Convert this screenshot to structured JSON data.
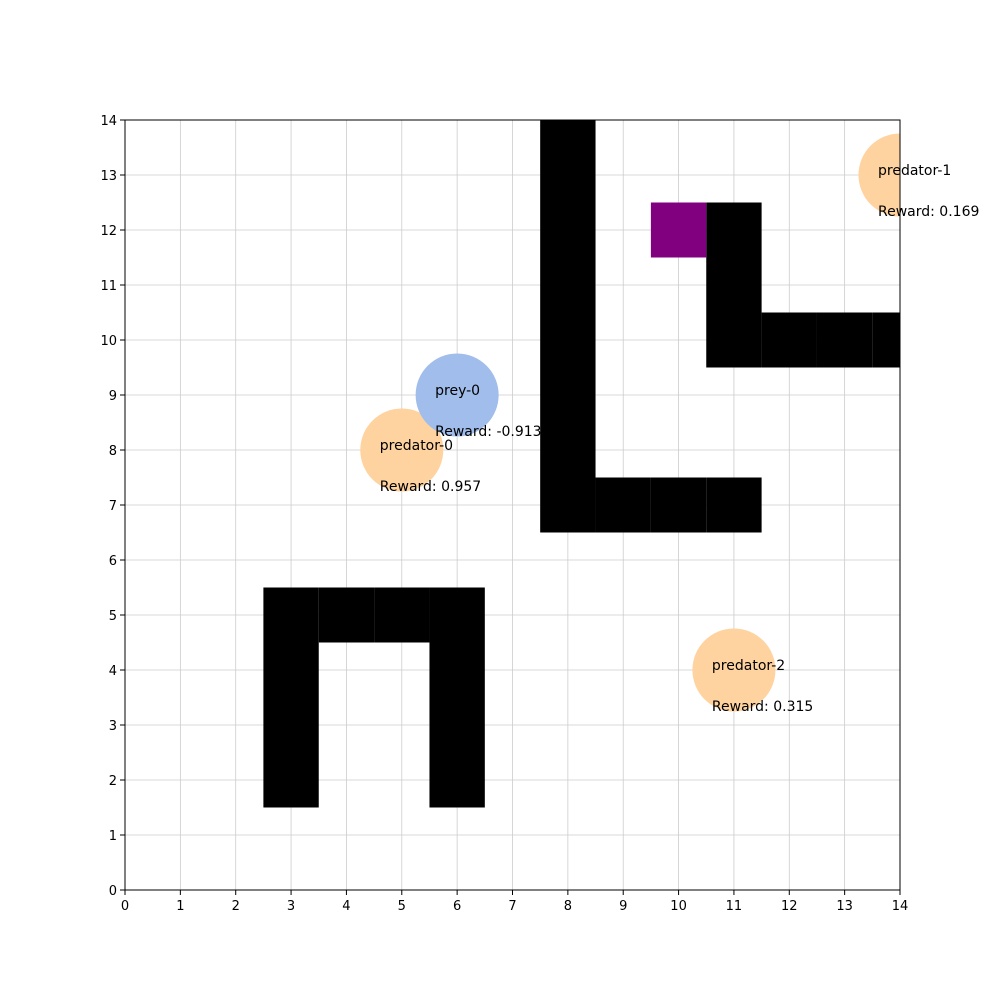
{
  "grid": {
    "x_range": [
      0,
      14
    ],
    "y_range": [
      0,
      14
    ],
    "x_ticks": [
      "0",
      "1",
      "2",
      "3",
      "4",
      "5",
      "6",
      "7",
      "8",
      "9",
      "10",
      "11",
      "12",
      "13",
      "14"
    ],
    "y_ticks": [
      "0",
      "1",
      "2",
      "3",
      "4",
      "5",
      "6",
      "7",
      "8",
      "9",
      "10",
      "11",
      "12",
      "13",
      "14"
    ],
    "show_grid": true,
    "grid_color": "#cccccc"
  },
  "obstacles": {
    "color": "#000000",
    "cells": [
      [
        8,
        7
      ],
      [
        8,
        8
      ],
      [
        8,
        9
      ],
      [
        8,
        10
      ],
      [
        8,
        11
      ],
      [
        8,
        12
      ],
      [
        8,
        13
      ],
      [
        8,
        14
      ],
      [
        9,
        7
      ],
      [
        10,
        7
      ],
      [
        11,
        7
      ],
      [
        11,
        10
      ],
      [
        11,
        11
      ],
      [
        11,
        12
      ],
      [
        12,
        10
      ],
      [
        13,
        10
      ],
      [
        14,
        10
      ],
      [
        3,
        2
      ],
      [
        3,
        3
      ],
      [
        3,
        4
      ],
      [
        3,
        5
      ],
      [
        4,
        5
      ],
      [
        5,
        5
      ],
      [
        6,
        5
      ],
      [
        6,
        4
      ],
      [
        6,
        3
      ],
      [
        6,
        2
      ]
    ]
  },
  "goal": {
    "color": "#800080",
    "cell": [
      10,
      12
    ]
  },
  "agents": [
    {
      "id": "predator-0",
      "kind": "predator",
      "color": "#ffd3a0",
      "x": 5,
      "y": 8,
      "name": "predator-0",
      "reward_text": "Reward: 0.957"
    },
    {
      "id": "predator-1",
      "kind": "predator",
      "color": "#ffd3a0",
      "x": 14,
      "y": 13,
      "name": "predator-1",
      "reward_text": "Reward: 0.169"
    },
    {
      "id": "predator-2",
      "kind": "predator",
      "color": "#ffd3a0",
      "x": 11,
      "y": 4,
      "name": "predator-2",
      "reward_text": "Reward: 0.315"
    },
    {
      "id": "prey-0",
      "kind": "prey",
      "color": "#a1bdec",
      "x": 6,
      "y": 9,
      "name": "prey-0",
      "reward_text": "Reward: -0.913"
    }
  ]
}
